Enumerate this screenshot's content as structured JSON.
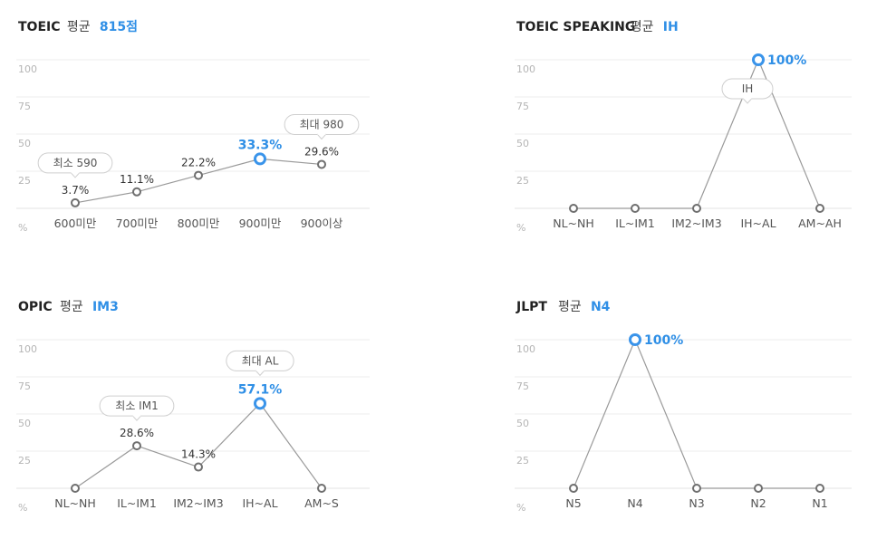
{
  "chart_data": [
    {
      "type": "line",
      "title": "TOEIC",
      "summary_label": "평균",
      "summary_value": "815점",
      "ylabel": "%",
      "ylim": [
        0,
        100
      ],
      "yticks": [
        "100",
        "75",
        "50",
        "25"
      ],
      "categories": [
        "600미만",
        "700미만",
        "800미만",
        "900미만",
        "900이상"
      ],
      "values": [
        3.7,
        11.1,
        22.2,
        33.3,
        29.6
      ],
      "labels": [
        "3.7%",
        "11.1%",
        "22.2%",
        "33.3%",
        "29.6%"
      ],
      "highlight_index": 3,
      "callouts": [
        {
          "text": "최소 590",
          "index": 0
        },
        {
          "text": "최대 980",
          "index": 4
        }
      ]
    },
    {
      "type": "line",
      "title": "TOEIC SPEAKING",
      "summary_label": "평균",
      "summary_value": "IH",
      "ylabel": "%",
      "ylim": [
        0,
        100
      ],
      "yticks": [
        "100",
        "75",
        "50",
        "25"
      ],
      "categories": [
        "NL~NH",
        "IL~IM1",
        "IM2~IM3",
        "IH~AL",
        "AM~AH"
      ],
      "values": [
        0,
        0,
        0,
        100,
        0
      ],
      "labels": [
        "",
        "",
        "",
        "100%",
        ""
      ],
      "highlight_index": 3,
      "callouts": [
        {
          "text": "IH",
          "index": 3
        }
      ]
    },
    {
      "type": "line",
      "title": "OPIC",
      "summary_label": "평균",
      "summary_value": "IM3",
      "ylabel": "%",
      "ylim": [
        0,
        100
      ],
      "yticks": [
        "100",
        "75",
        "50",
        "25"
      ],
      "categories": [
        "NL~NH",
        "IL~IM1",
        "IM2~IM3",
        "IH~AL",
        "AM~S"
      ],
      "values": [
        0,
        28.6,
        14.3,
        57.1,
        0
      ],
      "labels": [
        "",
        "28.6%",
        "14.3%",
        "57.1%",
        ""
      ],
      "highlight_index": 3,
      "callouts": [
        {
          "text": "최소 IM1",
          "index": 1
        },
        {
          "text": "최대 AL",
          "index": 3
        }
      ]
    },
    {
      "type": "line",
      "title": "JLPT",
      "summary_label": "평균",
      "summary_value": "N4",
      "ylabel": "%",
      "ylim": [
        0,
        100
      ],
      "yticks": [
        "100",
        "75",
        "50",
        "25"
      ],
      "categories": [
        "N5",
        "N4",
        "N3",
        "N2",
        "N1"
      ],
      "values": [
        0,
        100,
        0,
        0,
        0
      ],
      "labels": [
        "",
        "100%",
        "",
        "",
        ""
      ],
      "highlight_index": 1,
      "callouts": []
    }
  ]
}
